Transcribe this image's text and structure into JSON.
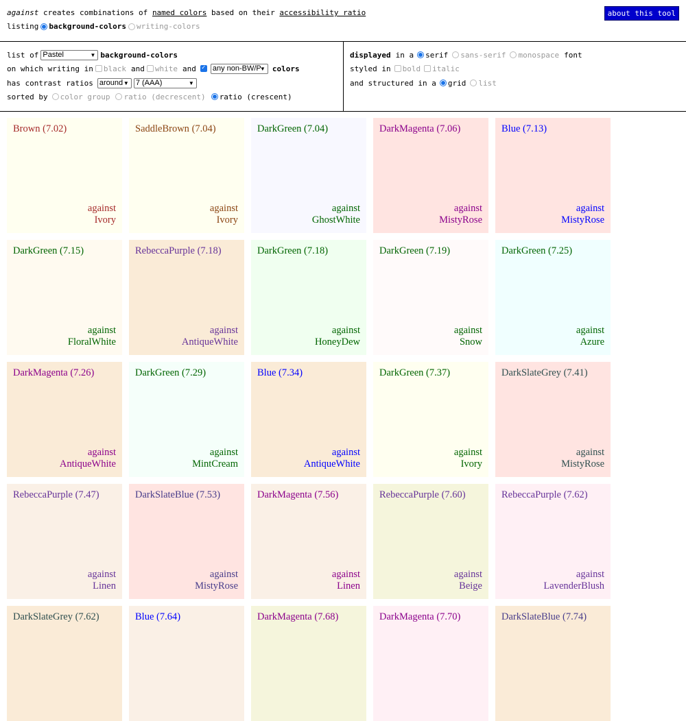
{
  "header": {
    "intro_em": "against",
    "intro_1": " creates combinations of ",
    "intro_link1": "named colors",
    "intro_2": " based on their ",
    "intro_link2": "accessibility ratio",
    "listing_label": "listing",
    "listing_opt1": "background-colors",
    "listing_opt2": "writing-colors",
    "about_label": "about this tool"
  },
  "controls": {
    "list_of": "list of",
    "palette_value": "Pastel",
    "list_suffix": "background-colors",
    "writing_label": "on which writing in",
    "black_label": "black",
    "and1": "and",
    "white_label": "white",
    "and2": "and",
    "nonbw_value": "any non-BW/P",
    "colors_label": "colors",
    "contrast_label": "has contrast ratios",
    "around_value": "around",
    "ratio_value": "7 (AAA)",
    "sorted_label": "sorted by",
    "sort_opt1": "color group",
    "sort_opt2": "ratio (decrescent)",
    "sort_opt3": "ratio (crescent)",
    "displayed_label": "displayed",
    "in_a": "in a",
    "font_opt1": "serif",
    "font_opt2": "sans-serif",
    "font_opt3": "monospace",
    "font_label": "font",
    "styled_label": "styled in",
    "bold_label": "bold",
    "italic_label": "italic",
    "structured_label": "and structured in a",
    "struct_opt1": "grid",
    "struct_opt2": "list"
  },
  "against_word": "against",
  "cards": [
    {
      "fg": "Brown",
      "ratio": "(7.02)",
      "bg": "Ivory",
      "fgc": "#a52a2a",
      "bgc": "#fffff0"
    },
    {
      "fg": "SaddleBrown",
      "ratio": "(7.04)",
      "bg": "Ivory",
      "fgc": "#8b4513",
      "bgc": "#fffff0"
    },
    {
      "fg": "DarkGreen",
      "ratio": "(7.04)",
      "bg": "GhostWhite",
      "fgc": "#006400",
      "bgc": "#f8f8ff"
    },
    {
      "fg": "DarkMagenta",
      "ratio": "(7.06)",
      "bg": "MistyRose",
      "fgc": "#8b008b",
      "bgc": "#ffe4e1"
    },
    {
      "fg": "Blue",
      "ratio": "(7.13)",
      "bg": "MistyRose",
      "fgc": "#0000ff",
      "bgc": "#ffe4e1"
    },
    {
      "fg": "DarkGreen",
      "ratio": "(7.15)",
      "bg": "FloralWhite",
      "fgc": "#006400",
      "bgc": "#fffaf0"
    },
    {
      "fg": "RebeccaPurple",
      "ratio": "(7.18)",
      "bg": "AntiqueWhite",
      "fgc": "#663399",
      "bgc": "#faebd7"
    },
    {
      "fg": "DarkGreen",
      "ratio": "(7.18)",
      "bg": "HoneyDew",
      "fgc": "#006400",
      "bgc": "#f0fff0"
    },
    {
      "fg": "DarkGreen",
      "ratio": "(7.19)",
      "bg": "Snow",
      "fgc": "#006400",
      "bgc": "#fffafa"
    },
    {
      "fg": "DarkGreen",
      "ratio": "(7.25)",
      "bg": "Azure",
      "fgc": "#006400",
      "bgc": "#f0ffff"
    },
    {
      "fg": "DarkMagenta",
      "ratio": "(7.26)",
      "bg": "AntiqueWhite",
      "fgc": "#8b008b",
      "bgc": "#faebd7"
    },
    {
      "fg": "DarkGreen",
      "ratio": "(7.29)",
      "bg": "MintCream",
      "fgc": "#006400",
      "bgc": "#f5fffa"
    },
    {
      "fg": "Blue",
      "ratio": "(7.34)",
      "bg": "AntiqueWhite",
      "fgc": "#0000ff",
      "bgc": "#faebd7"
    },
    {
      "fg": "DarkGreen",
      "ratio": "(7.37)",
      "bg": "Ivory",
      "fgc": "#006400",
      "bgc": "#fffff0"
    },
    {
      "fg": "DarkSlateGrey",
      "ratio": "(7.41)",
      "bg": "MistyRose",
      "fgc": "#2f4f4f",
      "bgc": "#ffe4e1"
    },
    {
      "fg": "RebeccaPurple",
      "ratio": "(7.47)",
      "bg": "Linen",
      "fgc": "#663399",
      "bgc": "#faf0e6"
    },
    {
      "fg": "DarkSlateBlue",
      "ratio": "(7.53)",
      "bg": "MistyRose",
      "fgc": "#483d8b",
      "bgc": "#ffe4e1"
    },
    {
      "fg": "DarkMagenta",
      "ratio": "(7.56)",
      "bg": "Linen",
      "fgc": "#8b008b",
      "bgc": "#faf0e6"
    },
    {
      "fg": "RebeccaPurple",
      "ratio": "(7.60)",
      "bg": "Beige",
      "fgc": "#663399",
      "bgc": "#f5f5dc"
    },
    {
      "fg": "RebeccaPurple",
      "ratio": "(7.62)",
      "bg": "LavenderBlush",
      "fgc": "#663399",
      "bgc": "#fff0f5"
    },
    {
      "fg": "DarkSlateGrey",
      "ratio": "(7.62)",
      "bg": "",
      "fgc": "#2f4f4f",
      "bgc": "#faebd7"
    },
    {
      "fg": "Blue",
      "ratio": "(7.64)",
      "bg": "",
      "fgc": "#0000ff",
      "bgc": "#faf0e6"
    },
    {
      "fg": "DarkMagenta",
      "ratio": "(7.68)",
      "bg": "",
      "fgc": "#8b008b",
      "bgc": "#f5f5dc"
    },
    {
      "fg": "DarkMagenta",
      "ratio": "(7.70)",
      "bg": "",
      "fgc": "#8b008b",
      "bgc": "#fff0f5"
    },
    {
      "fg": "DarkSlateBlue",
      "ratio": "(7.74)",
      "bg": "",
      "fgc": "#483d8b",
      "bgc": "#faebd7"
    }
  ]
}
